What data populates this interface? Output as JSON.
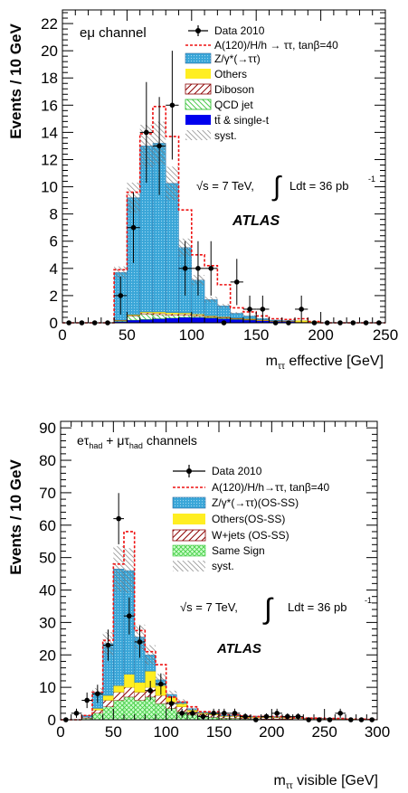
{
  "charts": [
    {
      "panel_id": "top",
      "channel_label": "eμ channel",
      "xlabel": "m_ττ effective [GeV]",
      "ylabel": "Events / 10 GeV",
      "xlim": [
        0,
        250
      ],
      "ylim": [
        0,
        23
      ],
      "x_ticks": [
        0,
        50,
        100,
        150,
        200,
        250
      ],
      "y_ticks": [
        0,
        2,
        4,
        6,
        8,
        10,
        12,
        14,
        16,
        18,
        20,
        22
      ],
      "energy_label": "√s = 7 TeV,",
      "lumi_label": "Ldt = 36 pb",
      "lumi_sup": "-1",
      "atlas_label": "ATLAS",
      "legend": [
        {
          "key": "data",
          "text": "Data 2010"
        },
        {
          "key": "signal",
          "text": "A(120)/H/h → ττ, tanβ=40"
        },
        {
          "key": "ztautau",
          "text": "Z/γ*(→ττ)"
        },
        {
          "key": "others",
          "text": "Others"
        },
        {
          "key": "diboson",
          "text": "Diboson"
        },
        {
          "key": "qcd",
          "text": "QCD jet"
        },
        {
          "key": "ttbar",
          "text": "tt̄ & single-t"
        },
        {
          "key": "syst",
          "text": "syst."
        }
      ]
    },
    {
      "panel_id": "bottom",
      "channel_label": "eτhad + μτhad channels",
      "xlabel": "m_ττ visible [GeV]",
      "ylabel": "Events / 10 GeV",
      "xlim": [
        0,
        300
      ],
      "ylim": [
        0,
        92
      ],
      "x_ticks": [
        0,
        50,
        100,
        150,
        200,
        250,
        300
      ],
      "y_ticks": [
        0,
        10,
        20,
        30,
        40,
        50,
        60,
        70,
        80,
        90
      ],
      "energy_label": "√s = 7 TeV,",
      "lumi_label": "Ldt = 36 pb",
      "lumi_sup": "-1",
      "atlas_label": "ATLAS",
      "legend": [
        {
          "key": "data",
          "text": "Data 2010"
        },
        {
          "key": "signal",
          "text": "A(120)/H/h→ττ, tanβ=40"
        },
        {
          "key": "ztautau",
          "text": "Z/γ*(→ττ)(OS-SS)"
        },
        {
          "key": "others",
          "text": "Others(OS-SS)"
        },
        {
          "key": "wjets",
          "text": "W+jets (OS-SS)"
        },
        {
          "key": "samesign",
          "text": "Same Sign"
        },
        {
          "key": "syst",
          "text": "syst."
        }
      ]
    }
  ],
  "chart_data": [
    {
      "type": "bar",
      "panel": "top",
      "bin_width": 10,
      "x": [
        0,
        10,
        20,
        30,
        40,
        50,
        60,
        70,
        80,
        90,
        100,
        110,
        120,
        130,
        140,
        150,
        160,
        170,
        180,
        190,
        200,
        210,
        220,
        230,
        240
      ],
      "stack_order": [
        "ttbar",
        "qcd",
        "diboson",
        "others",
        "ztautau"
      ],
      "series": [
        {
          "name": "tt̄ & single-t",
          "key": "ttbar",
          "values": [
            0,
            0,
            0,
            0,
            0.1,
            0.2,
            0.25,
            0.3,
            0.35,
            0.4,
            0.4,
            0.35,
            0.3,
            0.25,
            0.2,
            0.15,
            0.1,
            0.1,
            0.05,
            0.05,
            0,
            0,
            0,
            0,
            0
          ]
        },
        {
          "name": "QCD jet",
          "key": "qcd",
          "values": [
            0,
            0,
            0,
            0,
            0.05,
            0.3,
            0.4,
            0.3,
            0.2,
            0.15,
            0.1,
            0.05,
            0.05,
            0.03,
            0.02,
            0,
            0,
            0,
            0,
            0,
            0,
            0,
            0,
            0,
            0
          ]
        },
        {
          "name": "Diboson",
          "key": "diboson",
          "values": [
            0,
            0,
            0,
            0,
            0.02,
            0.05,
            0.08,
            0.1,
            0.1,
            0.1,
            0.08,
            0.06,
            0.05,
            0.04,
            0.03,
            0.02,
            0.02,
            0.01,
            0.01,
            0,
            0,
            0,
            0,
            0,
            0
          ]
        },
        {
          "name": "Others",
          "key": "others",
          "values": [
            0,
            0,
            0,
            0,
            0.03,
            0.05,
            0.07,
            0.1,
            0.1,
            0.08,
            0.06,
            0.05,
            0.04,
            0.03,
            0.05,
            0.05,
            0.03,
            0.03,
            0.1,
            0.03,
            0,
            0,
            0,
            0,
            0
          ]
        },
        {
          "name": "Z/γ*(→ττ)",
          "key": "ztautau",
          "values": [
            0,
            0,
            0,
            0,
            3.5,
            8.6,
            12.2,
            12.4,
            9.5,
            4.8,
            2.5,
            1.2,
            0.8,
            0.35,
            0.2,
            0.1,
            0.05,
            0.02,
            0,
            0,
            0,
            0,
            0,
            0,
            0
          ]
        }
      ],
      "signal": {
        "name": "A(120)/H/h → ττ, tanβ=40",
        "values": [
          0,
          0,
          0,
          0,
          3.9,
          9.6,
          13.9,
          15.9,
          13.7,
          8.3,
          5.0,
          4.2,
          2.8,
          1.1,
          0.8,
          0.5,
          0.3,
          0.25,
          0.3,
          0.1,
          0,
          0,
          0,
          0,
          0
        ]
      },
      "syst_rel": 0.12,
      "data": {
        "name": "Data 2010",
        "x": [
          5,
          15,
          25,
          35,
          45,
          55,
          65,
          75,
          85,
          95,
          105,
          115,
          125,
          135,
          145,
          155,
          165,
          175,
          185,
          195,
          205,
          215,
          225,
          235,
          245
        ],
        "y": [
          0,
          0,
          0,
          0,
          2,
          7,
          14,
          13,
          16,
          4,
          4,
          4,
          0,
          3,
          1,
          1,
          0,
          0,
          1,
          0,
          0,
          0,
          0,
          0,
          0
        ],
        "err": [
          0,
          0,
          0,
          0,
          1.4,
          2.6,
          3.7,
          3.6,
          4.0,
          2.0,
          2.0,
          2.0,
          0,
          1.7,
          1.0,
          1.0,
          0,
          0,
          1.0,
          0,
          0,
          0,
          0,
          0,
          0
        ]
      }
    },
    {
      "type": "bar",
      "panel": "bottom",
      "bin_width": 10,
      "x": [
        0,
        10,
        20,
        30,
        40,
        50,
        60,
        70,
        80,
        90,
        100,
        110,
        120,
        130,
        140,
        150,
        160,
        170,
        180,
        190,
        200,
        210,
        220,
        230,
        240,
        250,
        260,
        270,
        280,
        290
      ],
      "stack_order": [
        "samesign",
        "wjets",
        "others",
        "ztautau"
      ],
      "series": [
        {
          "name": "Same Sign",
          "key": "samesign",
          "values": [
            0,
            0,
            0.5,
            2,
            4,
            6,
            7,
            6,
            7,
            5,
            3.5,
            2.5,
            1.5,
            1,
            0.8,
            0.5,
            0.5,
            0.3,
            0.3,
            0.2,
            0.2,
            0.2,
            0.1,
            0.1,
            0.1,
            0.1,
            0,
            0,
            0,
            0
          ]
        },
        {
          "name": "W+jets (OS-SS)",
          "key": "wjets",
          "values": [
            0,
            0,
            0.3,
            1,
            2,
            2.5,
            3,
            2.5,
            3,
            2.5,
            2,
            1.5,
            1,
            0.8,
            0.7,
            0.5,
            0.5,
            0.4,
            0.4,
            0.4,
            0.4,
            0.3,
            0.3,
            0.2,
            0.2,
            0.2,
            0.2,
            0.1,
            0.1,
            0.1
          ]
        },
        {
          "name": "Others(OS-SS)",
          "key": "others",
          "values": [
            0,
            0,
            0,
            0.5,
            1.5,
            2,
            4,
            3,
            5,
            3,
            1.5,
            1,
            0.5,
            0.3,
            0.3,
            0.2,
            0.2,
            0.2,
            0.2,
            0.2,
            0.2,
            0.2,
            0.1,
            0.1,
            0.1,
            0.1,
            0.1,
            0.1,
            0,
            0
          ]
        },
        {
          "name": "Z/γ*(→ττ)(OS-SS)",
          "key": "ztautau",
          "values": [
            0,
            0,
            0.5,
            5,
            16,
            36,
            32,
            14,
            5,
            1.8,
            0.8,
            0.5,
            0.4,
            0.3,
            0.3,
            0.3,
            0.3,
            0.3,
            0.2,
            0.2,
            0.2,
            0.1,
            0.1,
            0.1,
            0.1,
            0.1,
            0.1,
            0,
            0,
            0
          ]
        }
      ],
      "signal": {
        "name": "A(120)/H/h→ττ, tanβ=40",
        "values": [
          0,
          0,
          1.3,
          8.5,
          24.5,
          48,
          58,
          27.5,
          21,
          17,
          7,
          5.5,
          4,
          2.5,
          2.5,
          1.5,
          1.5,
          1.2,
          1,
          1,
          1,
          0.8,
          0.6,
          0.5,
          0.5,
          0.4,
          0.4,
          0.2,
          0.2,
          0.1
        ]
      },
      "syst_rel": 0.15,
      "data": {
        "name": "Data 2010",
        "x": [
          5,
          15,
          25,
          35,
          45,
          55,
          65,
          75,
          85,
          95,
          105,
          115,
          125,
          135,
          145,
          155,
          165,
          175,
          185,
          195,
          205,
          215,
          225,
          235,
          245,
          255,
          265,
          275,
          285,
          295
        ],
        "y": [
          0,
          2,
          6,
          8,
          23,
          62,
          32,
          24,
          9,
          11,
          5,
          2,
          2,
          1,
          2,
          2,
          2,
          1,
          0,
          1,
          2,
          1,
          1,
          0,
          0,
          0,
          2,
          0,
          0,
          0
        ],
        "err": [
          0,
          1.4,
          2.4,
          2.8,
          4.8,
          7.9,
          5.7,
          4.9,
          3.0,
          3.3,
          2.2,
          1.4,
          1.4,
          1.0,
          1.4,
          1.4,
          1.4,
          1.0,
          0,
          1.0,
          1.4,
          1.0,
          1.0,
          0,
          0,
          0,
          1.4,
          0,
          0,
          0
        ]
      }
    }
  ]
}
